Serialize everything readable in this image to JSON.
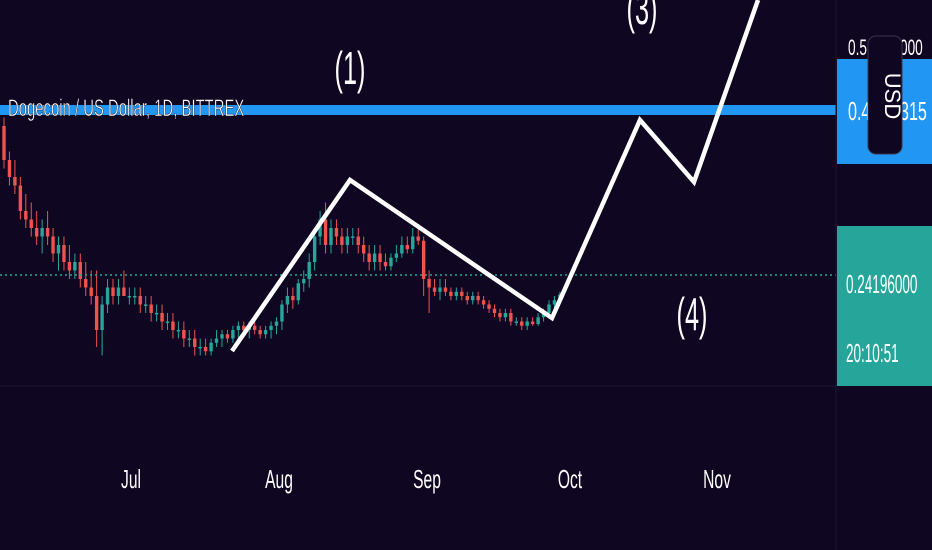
{
  "header": {
    "title": "Dogecoin / US Dollar, 1D, BITTREX"
  },
  "colors": {
    "background": "#0f0621",
    "up_candle": "#26a69a",
    "down_candle": "#ef5350",
    "resistance_line": "#2196f3",
    "wave_line": "#ffffff",
    "price_badge": "#26a69a"
  },
  "price_scale": {
    "top_partial": "0.5",
    "top_partial_tail": "000",
    "resistance_label_left": "0.4",
    "resistance_label_right": "315",
    "currency_button": "USD",
    "last_price": "0.24196000",
    "countdown": "20:10:51"
  },
  "wave_labels": [
    "(1)",
    "(3)",
    "(4)"
  ],
  "chart_data": {
    "type": "candlestick",
    "title": "Dogecoin / US Dollar, 1D, BITTREX",
    "x_tick_labels": [
      "Jul",
      "Aug",
      "Sep",
      "Oct",
      "Nov"
    ],
    "last_price": 0.24196,
    "resistance_level": 0.43,
    "ohlc": [
      [
        0.44,
        0.45,
        0.39,
        0.4
      ],
      [
        0.4,
        0.41,
        0.37,
        0.38
      ],
      [
        0.38,
        0.4,
        0.36,
        0.37
      ],
      [
        0.37,
        0.38,
        0.33,
        0.34
      ],
      [
        0.34,
        0.36,
        0.32,
        0.33
      ],
      [
        0.33,
        0.35,
        0.31,
        0.32
      ],
      [
        0.32,
        0.34,
        0.3,
        0.31
      ],
      [
        0.31,
        0.33,
        0.29,
        0.32
      ],
      [
        0.32,
        0.34,
        0.3,
        0.31
      ],
      [
        0.31,
        0.32,
        0.28,
        0.29
      ],
      [
        0.29,
        0.31,
        0.27,
        0.3
      ],
      [
        0.3,
        0.31,
        0.27,
        0.28
      ],
      [
        0.28,
        0.3,
        0.26,
        0.27
      ],
      [
        0.27,
        0.29,
        0.26,
        0.28
      ],
      [
        0.28,
        0.29,
        0.25,
        0.26
      ],
      [
        0.26,
        0.28,
        0.24,
        0.25
      ],
      [
        0.25,
        0.27,
        0.23,
        0.24
      ],
      [
        0.24,
        0.27,
        0.18,
        0.2
      ],
      [
        0.2,
        0.24,
        0.17,
        0.23
      ],
      [
        0.23,
        0.26,
        0.22,
        0.25
      ],
      [
        0.25,
        0.26,
        0.23,
        0.24
      ],
      [
        0.24,
        0.26,
        0.23,
        0.25
      ],
      [
        0.25,
        0.27,
        0.24,
        0.24
      ],
      [
        0.24,
        0.25,
        0.23,
        0.24
      ],
      [
        0.24,
        0.25,
        0.23,
        0.24
      ],
      [
        0.24,
        0.25,
        0.22,
        0.23
      ],
      [
        0.23,
        0.24,
        0.22,
        0.23
      ],
      [
        0.23,
        0.24,
        0.21,
        0.22
      ],
      [
        0.22,
        0.23,
        0.21,
        0.22
      ],
      [
        0.22,
        0.23,
        0.2,
        0.21
      ],
      [
        0.21,
        0.22,
        0.2,
        0.21
      ],
      [
        0.21,
        0.22,
        0.19,
        0.2
      ],
      [
        0.2,
        0.21,
        0.19,
        0.2
      ],
      [
        0.2,
        0.21,
        0.18,
        0.19
      ],
      [
        0.19,
        0.2,
        0.18,
        0.19
      ],
      [
        0.19,
        0.2,
        0.17,
        0.18
      ],
      [
        0.18,
        0.19,
        0.17,
        0.18
      ],
      [
        0.18,
        0.19,
        0.17,
        0.175
      ],
      [
        0.175,
        0.19,
        0.17,
        0.185
      ],
      [
        0.185,
        0.2,
        0.18,
        0.19
      ],
      [
        0.19,
        0.2,
        0.18,
        0.195
      ],
      [
        0.195,
        0.2,
        0.185,
        0.19
      ],
      [
        0.19,
        0.205,
        0.185,
        0.2
      ],
      [
        0.2,
        0.21,
        0.19,
        0.205
      ],
      [
        0.205,
        0.21,
        0.195,
        0.2
      ],
      [
        0.2,
        0.21,
        0.19,
        0.205
      ],
      [
        0.205,
        0.21,
        0.195,
        0.2
      ],
      [
        0.2,
        0.205,
        0.19,
        0.195
      ],
      [
        0.195,
        0.205,
        0.19,
        0.2
      ],
      [
        0.2,
        0.21,
        0.19,
        0.205
      ],
      [
        0.205,
        0.215,
        0.195,
        0.21
      ],
      [
        0.21,
        0.235,
        0.2,
        0.23
      ],
      [
        0.23,
        0.25,
        0.22,
        0.24
      ],
      [
        0.24,
        0.25,
        0.225,
        0.235
      ],
      [
        0.235,
        0.26,
        0.23,
        0.255
      ],
      [
        0.255,
        0.27,
        0.245,
        0.26
      ],
      [
        0.26,
        0.29,
        0.25,
        0.28
      ],
      [
        0.28,
        0.32,
        0.27,
        0.31
      ],
      [
        0.31,
        0.34,
        0.3,
        0.33
      ],
      [
        0.33,
        0.35,
        0.29,
        0.3
      ],
      [
        0.3,
        0.33,
        0.29,
        0.32
      ],
      [
        0.32,
        0.33,
        0.3,
        0.31
      ],
      [
        0.31,
        0.32,
        0.29,
        0.3
      ],
      [
        0.3,
        0.32,
        0.29,
        0.31
      ],
      [
        0.31,
        0.32,
        0.3,
        0.31
      ],
      [
        0.31,
        0.32,
        0.29,
        0.3
      ],
      [
        0.3,
        0.31,
        0.28,
        0.29
      ],
      [
        0.29,
        0.3,
        0.27,
        0.28
      ],
      [
        0.28,
        0.3,
        0.27,
        0.29
      ],
      [
        0.29,
        0.3,
        0.27,
        0.28
      ],
      [
        0.28,
        0.29,
        0.27,
        0.275
      ],
      [
        0.275,
        0.29,
        0.27,
        0.285
      ],
      [
        0.285,
        0.3,
        0.28,
        0.29
      ],
      [
        0.29,
        0.31,
        0.285,
        0.3
      ],
      [
        0.3,
        0.31,
        0.29,
        0.295
      ],
      [
        0.295,
        0.32,
        0.29,
        0.31
      ],
      [
        0.31,
        0.32,
        0.3,
        0.305
      ],
      [
        0.305,
        0.31,
        0.24,
        0.26
      ],
      [
        0.26,
        0.27,
        0.22,
        0.25
      ],
      [
        0.25,
        0.26,
        0.24,
        0.245
      ],
      [
        0.245,
        0.26,
        0.235,
        0.25
      ],
      [
        0.25,
        0.26,
        0.24,
        0.245
      ],
      [
        0.245,
        0.25,
        0.235,
        0.24
      ],
      [
        0.24,
        0.25,
        0.235,
        0.245
      ],
      [
        0.245,
        0.25,
        0.235,
        0.24
      ],
      [
        0.24,
        0.245,
        0.23,
        0.235
      ],
      [
        0.235,
        0.245,
        0.23,
        0.24
      ],
      [
        0.24,
        0.245,
        0.23,
        0.235
      ],
      [
        0.235,
        0.24,
        0.225,
        0.23
      ],
      [
        0.23,
        0.235,
        0.22,
        0.225
      ],
      [
        0.225,
        0.23,
        0.215,
        0.22
      ],
      [
        0.22,
        0.225,
        0.21,
        0.215
      ],
      [
        0.215,
        0.225,
        0.21,
        0.22
      ],
      [
        0.22,
        0.225,
        0.205,
        0.21
      ],
      [
        0.21,
        0.215,
        0.205,
        0.21
      ],
      [
        0.21,
        0.215,
        0.2,
        0.205
      ],
      [
        0.205,
        0.215,
        0.2,
        0.21
      ],
      [
        0.21,
        0.215,
        0.205,
        0.207
      ],
      [
        0.207,
        0.22,
        0.205,
        0.215
      ],
      [
        0.215,
        0.225,
        0.21,
        0.22
      ],
      [
        0.22,
        0.235,
        0.215,
        0.23
      ],
      [
        0.23,
        0.24,
        0.225,
        0.235
      ],
      [
        0.235,
        0.245,
        0.23,
        0.242
      ]
    ]
  }
}
